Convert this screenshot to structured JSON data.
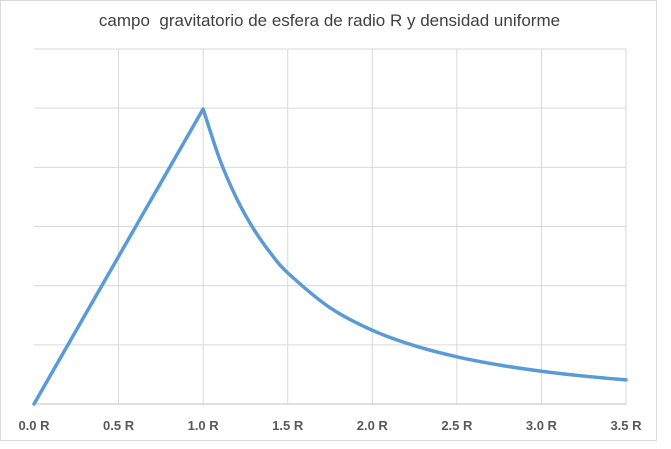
{
  "chart_data": {
    "type": "line",
    "title": "campo  gravitatorio de esfera de radio R y densidad uniforme",
    "xlabel": "",
    "ylabel": "",
    "x_ticks": [
      "0.0 R",
      "0.5 R",
      "1.0 R",
      "1.5 R",
      "2.0 R",
      "2.5 R",
      "3.0 R",
      "3.5 R"
    ],
    "xlim": [
      0,
      3.5
    ],
    "ylim": [
      0,
      1.0
    ],
    "y_gridlines": 6,
    "y_tick_labels_shown": false,
    "grid": true,
    "legend": "none",
    "series": [
      {
        "color": "#5b9bd5",
        "x": [
          0,
          0.5,
          1.0,
          1.1,
          1.2,
          1.3,
          1.4,
          1.5,
          1.75,
          2.0,
          2.25,
          2.5,
          2.75,
          3.0,
          3.25,
          3.5
        ],
        "y": [
          0,
          0.4167,
          0.8333,
          0.6887,
          0.5787,
          0.4931,
          0.4252,
          0.3704,
          0.2721,
          0.2083,
          0.1646,
          0.1333,
          0.1102,
          0.0926,
          0.0789,
          0.068
        ]
      }
    ]
  }
}
